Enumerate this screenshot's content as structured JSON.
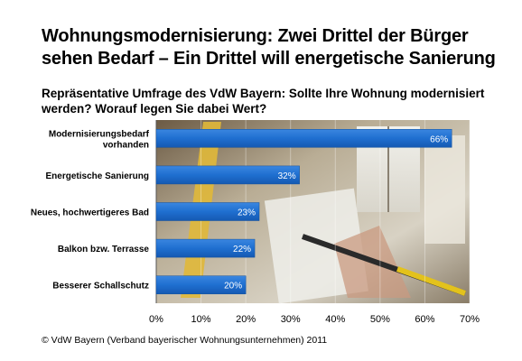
{
  "title_line1": "Wohnungsmodernisierung: Zwei Drittel der Bürger",
  "title_line2": "sehen Bedarf – Ein Drittel will energetische Sanierung",
  "subtitle": "Repräsentative Umfrage des VdW Bayern: Sollte Ihre Wohnung modernisiert werden? Worauf legen Sie dabei Wert?",
  "footer": "© VdW Bayern (Verband bayerischer Wohnungsunternehmen) 2011",
  "chart_data": {
    "type": "bar",
    "orientation": "horizontal",
    "categories": [
      [
        "Modernisierungsbedarf",
        "vorhanden"
      ],
      [
        "Energetische Sanierung"
      ],
      [
        "Neues, hochwertigeres Bad"
      ],
      [
        "Balkon bzw. Terrasse"
      ],
      [
        "Besserer Schallschutz"
      ]
    ],
    "values": [
      66,
      32,
      23,
      22,
      20
    ],
    "value_labels": [
      "66%",
      "32%",
      "23%",
      "22%",
      "20%"
    ],
    "xlim": [
      0,
      70
    ],
    "x_ticks": [
      "0%",
      "10%",
      "20%",
      "30%",
      "40%",
      "50%",
      "60%",
      "70%"
    ],
    "bar_color": "#1f6fd0",
    "background": "photo of a room with ruler and pencil on a sketch"
  }
}
